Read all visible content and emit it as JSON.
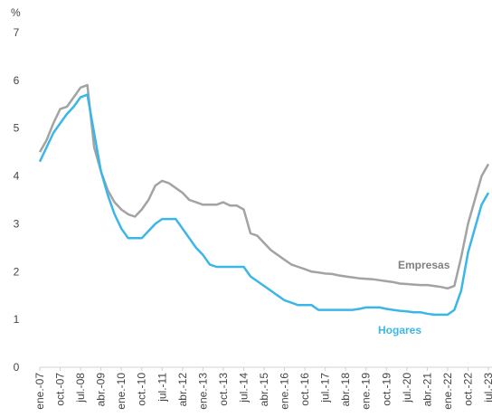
{
  "chart_data": {
    "type": "line",
    "y_label": "%",
    "categories": [
      "ene.-07",
      null,
      null,
      "oct.-07",
      null,
      null,
      "jul.-08",
      null,
      null,
      "abr.-09",
      null,
      null,
      "ene.-10",
      null,
      null,
      "oct.-10",
      null,
      null,
      "jul.-11",
      null,
      null,
      "abr.-12",
      null,
      null,
      "ene.-13",
      null,
      null,
      "oct.-13",
      null,
      null,
      "jul.-14",
      null,
      null,
      "abr.-15",
      null,
      null,
      "ene.-16",
      null,
      null,
      "oct.-16",
      null,
      null,
      "jul.-17",
      null,
      null,
      "abr.-18",
      null,
      null,
      "ene.-19",
      null,
      null,
      "oct.-19",
      null,
      null,
      "jul.-20",
      null,
      null,
      "abr.-21",
      null,
      null,
      "ene.-22",
      null,
      null,
      "oct.-22",
      null,
      null,
      "jul.-23"
    ],
    "series": [
      {
        "name": "Empresas",
        "color": "#a3a3a3",
        "label_color": "#7f7f7f",
        "values": [
          4.5,
          4.75,
          5.1,
          5.4,
          5.45,
          5.65,
          5.85,
          5.9,
          4.6,
          4.1,
          3.7,
          3.45,
          3.3,
          3.2,
          3.15,
          3.3,
          3.5,
          3.8,
          3.9,
          3.85,
          3.75,
          3.65,
          3.5,
          3.45,
          3.4,
          3.4,
          3.4,
          3.45,
          3.38,
          3.38,
          3.3,
          2.8,
          2.75,
          2.6,
          2.45,
          2.35,
          2.25,
          2.15,
          2.1,
          2.05,
          2.0,
          1.98,
          1.96,
          1.95,
          1.92,
          1.9,
          1.88,
          1.86,
          1.85,
          1.84,
          1.82,
          1.8,
          1.78,
          1.75,
          1.74,
          1.73,
          1.72,
          1.72,
          1.7,
          1.68,
          1.65,
          1.7,
          2.3,
          3.0,
          3.5,
          4.0,
          4.25
        ]
      },
      {
        "name": "Hogares",
        "color": "#3cb6e8",
        "label_color": "#3cb6e8",
        "values": [
          4.3,
          4.6,
          4.9,
          5.1,
          5.3,
          5.45,
          5.65,
          5.7,
          4.9,
          4.1,
          3.6,
          3.2,
          2.9,
          2.7,
          2.7,
          2.7,
          2.85,
          3.0,
          3.1,
          3.1,
          3.1,
          2.9,
          2.7,
          2.5,
          2.35,
          2.15,
          2.1,
          2.1,
          2.1,
          2.1,
          2.1,
          1.9,
          1.8,
          1.7,
          1.6,
          1.5,
          1.4,
          1.35,
          1.3,
          1.3,
          1.3,
          1.2,
          1.2,
          1.2,
          1.2,
          1.2,
          1.2,
          1.22,
          1.25,
          1.25,
          1.25,
          1.22,
          1.2,
          1.18,
          1.17,
          1.15,
          1.15,
          1.12,
          1.1,
          1.1,
          1.1,
          1.2,
          1.6,
          2.4,
          2.9,
          3.4,
          3.65
        ]
      }
    ],
    "ylim": [
      0,
      7
    ],
    "yticks": [
      0,
      1,
      2,
      3,
      4,
      5,
      6,
      7
    ]
  }
}
